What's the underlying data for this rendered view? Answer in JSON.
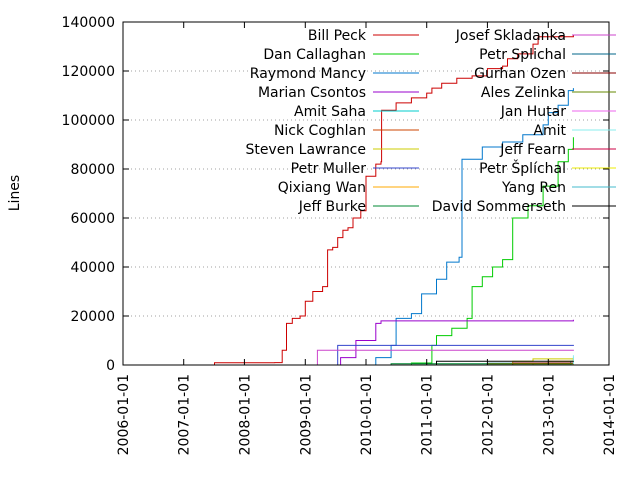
{
  "chart_data": {
    "type": "line",
    "title": "",
    "xlabel": "",
    "ylabel": "Lines",
    "xlim": [
      "2006-01-01",
      "2014-01-01"
    ],
    "ylim": [
      0,
      140000
    ],
    "x_ticks": [
      "2006-01-01",
      "2007-01-01",
      "2008-01-01",
      "2009-01-01",
      "2010-01-01",
      "2011-01-01",
      "2012-01-01",
      "2013-01-01",
      "2014-01-01"
    ],
    "y_ticks": [
      0,
      20000,
      40000,
      60000,
      80000,
      100000,
      120000,
      140000
    ],
    "y_tick_labels": [
      "0",
      "20000",
      "40000",
      "60000",
      "80000",
      "100000",
      "120000",
      "140000"
    ],
    "grid": "horizontal dotted",
    "legend_position": "top (two columns)",
    "series": [
      {
        "name": "Bill Peck",
        "color": "#cc0000",
        "points": [
          [
            "2007-07-01",
            0
          ],
          [
            "2007-07-05",
            900
          ],
          [
            "2008-07-01",
            1000
          ],
          [
            "2008-08-15",
            6000
          ],
          [
            "2008-09-10",
            17000
          ],
          [
            "2008-10-15",
            19000
          ],
          [
            "2008-12-01",
            20000
          ],
          [
            "2009-01-01",
            26000
          ],
          [
            "2009-02-15",
            30000
          ],
          [
            "2009-04-15",
            32000
          ],
          [
            "2009-05-15",
            47000
          ],
          [
            "2009-06-15",
            48000
          ],
          [
            "2009-07-15",
            52000
          ],
          [
            "2009-08-15",
            55000
          ],
          [
            "2009-09-15",
            56000
          ],
          [
            "2009-10-15",
            60000
          ],
          [
            "2009-12-01",
            63000
          ],
          [
            "2010-01-01",
            77000
          ],
          [
            "2010-03-01",
            82000
          ],
          [
            "2010-04-01",
            83000
          ],
          [
            "2010-04-05",
            104000
          ],
          [
            "2010-07-01",
            107000
          ],
          [
            "2010-10-01",
            109000
          ],
          [
            "2011-01-01",
            111000
          ],
          [
            "2011-02-01",
            113000
          ],
          [
            "2011-04-01",
            115000
          ],
          [
            "2011-07-01",
            117000
          ],
          [
            "2011-10-01",
            118000
          ],
          [
            "2012-01-01",
            121000
          ],
          [
            "2012-04-01",
            122000
          ],
          [
            "2012-05-01",
            125000
          ],
          [
            "2012-07-01",
            127000
          ],
          [
            "2012-10-01",
            131000
          ],
          [
            "2012-11-01",
            134000
          ],
          [
            "2013-06-01",
            134500
          ]
        ]
      },
      {
        "name": "Dan Callaghan",
        "color": "#00cc00",
        "points": [
          [
            "2009-08-01",
            0
          ],
          [
            "2010-10-01",
            800
          ],
          [
            "2011-02-01",
            8000
          ],
          [
            "2011-03-01",
            12000
          ],
          [
            "2011-06-01",
            15000
          ],
          [
            "2011-09-01",
            19000
          ],
          [
            "2011-10-01",
            32000
          ],
          [
            "2011-12-01",
            36000
          ],
          [
            "2012-02-01",
            40000
          ],
          [
            "2012-04-01",
            43000
          ],
          [
            "2012-06-01",
            60000
          ],
          [
            "2012-09-01",
            65000
          ],
          [
            "2012-12-01",
            73000
          ],
          [
            "2013-03-01",
            83000
          ],
          [
            "2013-05-01",
            88000
          ],
          [
            "2013-06-01",
            93000
          ]
        ]
      },
      {
        "name": "Raymond Mancy",
        "color": "#0077cc",
        "points": [
          [
            "2009-12-01",
            0
          ],
          [
            "2010-03-01",
            3000
          ],
          [
            "2010-06-01",
            8000
          ],
          [
            "2010-07-01",
            19000
          ],
          [
            "2010-10-01",
            21000
          ],
          [
            "2010-12-01",
            29000
          ],
          [
            "2011-03-01",
            35000
          ],
          [
            "2011-05-01",
            42000
          ],
          [
            "2011-07-15",
            44000
          ],
          [
            "2011-08-01",
            84000
          ],
          [
            "2011-12-01",
            89000
          ],
          [
            "2012-04-01",
            91000
          ],
          [
            "2012-08-01",
            94000
          ],
          [
            "2012-12-01",
            98000
          ],
          [
            "2013-01-01",
            103000
          ],
          [
            "2013-03-01",
            106000
          ],
          [
            "2013-05-01",
            112000
          ],
          [
            "2013-06-01",
            113000
          ]
        ]
      },
      {
        "name": "Marian Csontos",
        "color": "#9900cc",
        "points": [
          [
            "2009-06-01",
            0
          ],
          [
            "2009-08-01",
            3000
          ],
          [
            "2009-11-01",
            10000
          ],
          [
            "2010-03-01",
            17000
          ],
          [
            "2010-04-01",
            18000
          ],
          [
            "2013-06-01",
            18500
          ]
        ]
      },
      {
        "name": "Amit Saha",
        "color": "#00cccc",
        "points": [
          [
            "2013-03-01",
            0
          ],
          [
            "2013-05-15",
            1500
          ],
          [
            "2013-06-01",
            3000
          ]
        ]
      },
      {
        "name": "Nick Coghlan",
        "color": "#cc4400",
        "points": [
          [
            "2011-07-01",
            0
          ],
          [
            "2012-10-01",
            600
          ],
          [
            "2013-06-01",
            1000
          ]
        ]
      },
      {
        "name": "Steven Lawrance",
        "color": "#cccc00",
        "points": [
          [
            "2012-01-01",
            0
          ],
          [
            "2012-06-01",
            1500
          ],
          [
            "2012-10-01",
            2500
          ],
          [
            "2013-06-01",
            2600
          ]
        ]
      },
      {
        "name": "Petr Muller",
        "color": "#3344cc",
        "points": [
          [
            "2009-06-01",
            0
          ],
          [
            "2009-07-15",
            8000
          ],
          [
            "2013-06-01",
            8200
          ]
        ]
      },
      {
        "name": "Qixiang Wan",
        "color": "#ffaa00",
        "points": [
          [
            "2012-09-01",
            0
          ],
          [
            "2013-01-01",
            1500
          ],
          [
            "2013-06-01",
            2500
          ]
        ]
      },
      {
        "name": "Jeff Burke",
        "color": "#008833",
        "points": [
          [
            "2009-09-01",
            0
          ],
          [
            "2010-06-01",
            500
          ],
          [
            "2013-06-01",
            900
          ]
        ]
      },
      {
        "name": "Josef Skladanka",
        "color": "#cc44cc",
        "points": [
          [
            "2009-03-01",
            0
          ],
          [
            "2009-03-15",
            6000
          ],
          [
            "2013-06-01",
            6200
          ]
        ]
      },
      {
        "name": "Petr Splichal",
        "color": "#006688",
        "points": [
          [
            "2011-01-01",
            0
          ],
          [
            "2012-01-01",
            700
          ],
          [
            "2013-06-01",
            800
          ]
        ]
      },
      {
        "name": "Gurhan Ozen",
        "color": "#880000",
        "points": [
          [
            "2011-06-01",
            0
          ],
          [
            "2012-06-01",
            800
          ],
          [
            "2013-06-01",
            900
          ]
        ]
      },
      {
        "name": "Ales Zelinka",
        "color": "#668800",
        "points": [
          [
            "2011-01-01",
            0
          ],
          [
            "2012-01-01",
            500
          ],
          [
            "2013-06-01",
            600
          ]
        ]
      },
      {
        "name": "Jan Hutar",
        "color": "#ee66ee",
        "points": [
          [
            "2013-04-01",
            0
          ],
          [
            "2013-06-01",
            400
          ]
        ]
      },
      {
        "name": "Amit",
        "color": "#88eeee",
        "points": [
          [
            "2013-03-01",
            0
          ],
          [
            "2013-06-01",
            4000
          ]
        ]
      },
      {
        "name": "Jeff Fearn",
        "color": "#cc0044",
        "points": [
          [
            "2012-01-01",
            0
          ],
          [
            "2013-06-01",
            300
          ]
        ]
      },
      {
        "name": "Petr Šplíchal",
        "color": "#eeee00",
        "points": [
          [
            "2013-01-01",
            0
          ],
          [
            "2013-06-01",
            300
          ]
        ]
      },
      {
        "name": "Yang Ren",
        "color": "#44bbcc",
        "points": [
          [
            "2013-04-01",
            0
          ],
          [
            "2013-06-01",
            200
          ]
        ]
      },
      {
        "name": "David Sommerseth",
        "color": "#000000",
        "points": [
          [
            "2011-01-01",
            0
          ],
          [
            "2011-03-01",
            1500
          ],
          [
            "2013-06-01",
            1600
          ]
        ]
      }
    ]
  }
}
